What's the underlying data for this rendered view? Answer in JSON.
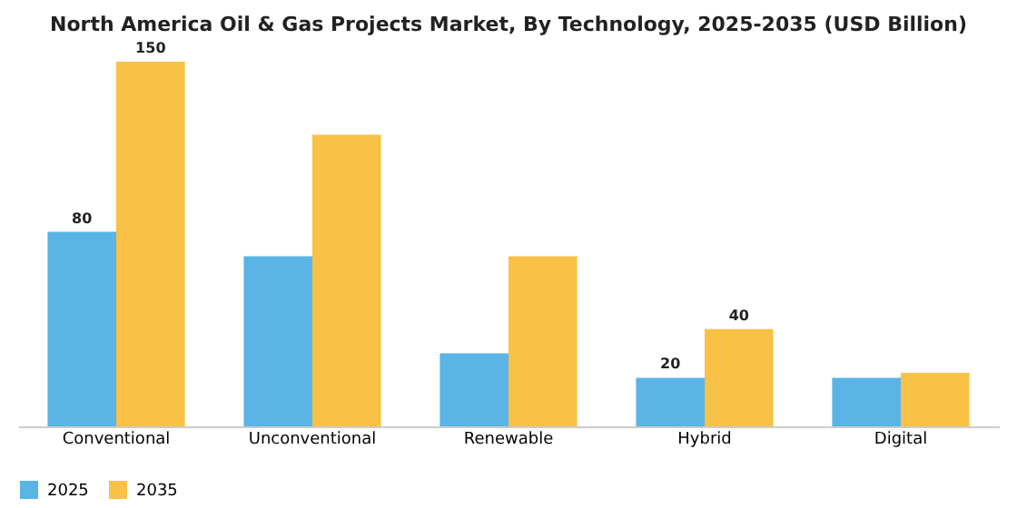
{
  "chart_data": {
    "type": "bar",
    "title": "North America Oil & Gas Projects Market, By Technology, 2025-2035 (USD Billion)",
    "categories": [
      "Conventional",
      "Unconventional",
      "Renewable",
      "Hybrid",
      "Digital"
    ],
    "series": [
      {
        "name": "2025",
        "color": "#5ab4e5",
        "values": [
          80,
          70,
          30,
          20,
          20
        ],
        "value_labels": [
          "80",
          null,
          null,
          "20",
          null
        ]
      },
      {
        "name": "2035",
        "color": "#f9c146",
        "values": [
          150,
          120,
          70,
          40,
          22
        ],
        "value_labels": [
          "150",
          null,
          null,
          "40",
          null
        ]
      }
    ],
    "legend": "bottom",
    "grid": false
  }
}
